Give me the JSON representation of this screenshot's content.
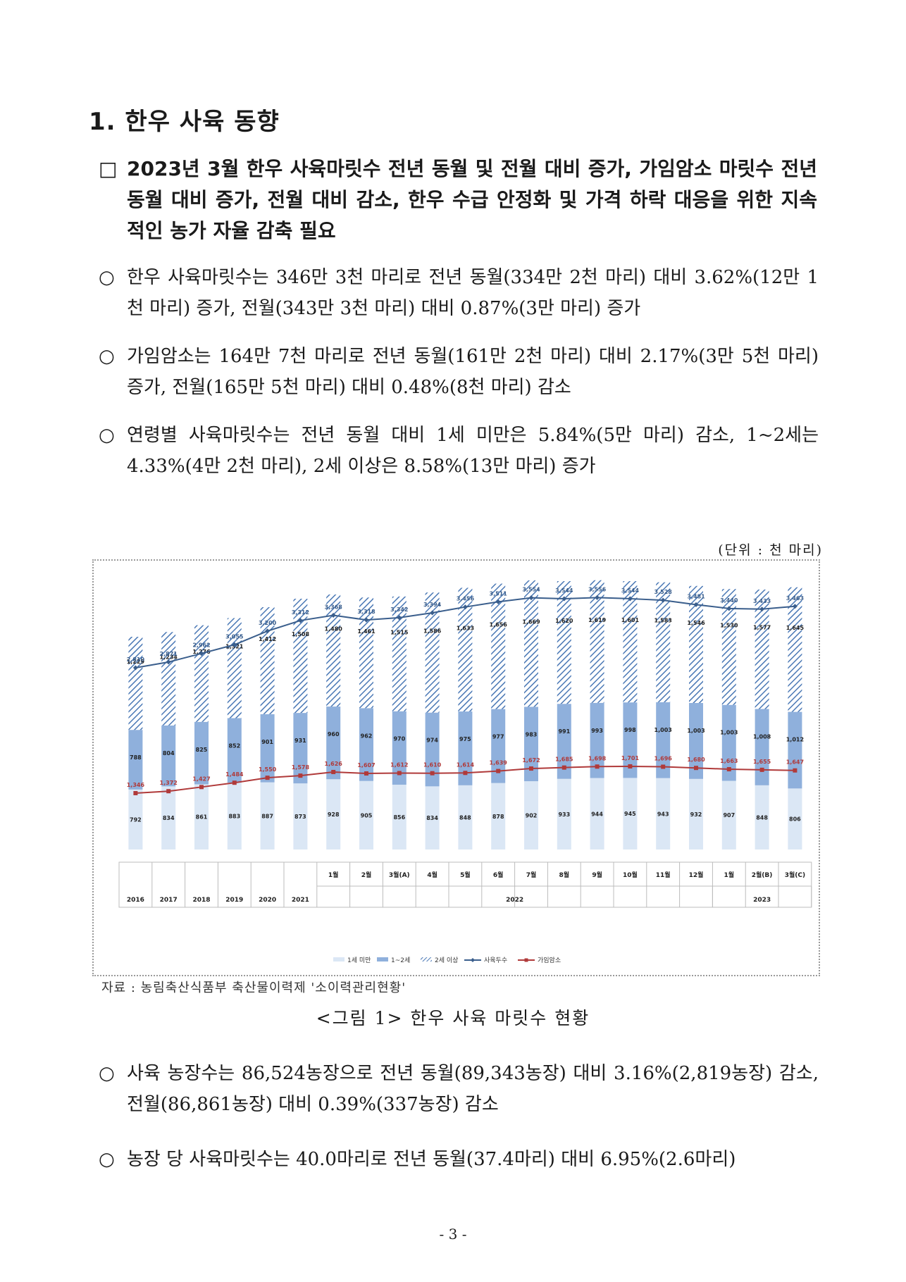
{
  "section_title": "1. 한우 사육 동향",
  "summary": {
    "mark": "□",
    "text": "2023년 3월 한우 사육마릿수 전년 동월 및 전월 대비 증가, 가임암소 마릿수 전년 동월 대비 증가, 전월 대비 감소, 한우 수급 안정화 및 가격 하락 대응을 위한 지속적인 농가 자율 감축 필요"
  },
  "bullets": [
    {
      "mark": "○",
      "text": "한우 사육마릿수는 346만 3천 마리로 전년 동월(334만 2천 마리) 대비 3.62%(12만 1천 마리) 증가, 전월(343만 3천 마리) 대비 0.87%(3만 마리) 증가"
    },
    {
      "mark": "○",
      "text": "가임암소는 164만 7천 마리로 전년 동월(161만 2천 마리) 대비 2.17%(3만 5천 마리) 증가, 전월(165만 5천 마리) 대비 0.48%(8천 마리) 감소"
    },
    {
      "mark": "○",
      "text": "연령별 사육마릿수는 전년 동월 대비 1세 미만은 5.84%(5만 마리) 감소, 1~2세는 4.33%(4만 2천 마리), 2세 이상은 8.58%(13만 마리) 증가"
    }
  ],
  "unit_label": "(단위 : 천 마리)",
  "source": "자료 : 농림축산식품부 축산물이력제 '소이력관리현황'",
  "caption": "<그림 1> 한우 사육 마릿수 현황",
  "bullets_after": [
    {
      "mark": "○",
      "text": "사육 농장수는 86,524농장으로 전년 동월(89,343농장) 대비 3.16%(2,819농장) 감소, 전월(86,861농장) 대비 0.39%(337농장) 감소"
    },
    {
      "mark": "○",
      "text": "농장 당 사육마릿수는 40.0마리로 전년 동월(37.4마리) 대비 6.95%(2.6마리)"
    }
  ],
  "page_number": "- 3 -",
  "chart_data": {
    "type": "bar",
    "stacked": true,
    "categories": [
      "2016",
      "2017",
      "2018",
      "2019",
      "2020",
      "2021",
      "1월",
      "2월",
      "3월(A)",
      "4월",
      "5월",
      "6월",
      "7월",
      "8월",
      "9월",
      "10월",
      "11월",
      "12월",
      "1월",
      "2월(B)",
      "3월(C)"
    ],
    "category_groups": [
      {
        "label": "2022",
        "start": 6,
        "end": 17
      },
      {
        "label": "2023",
        "start": 18,
        "end": 20
      }
    ],
    "series": [
      {
        "name": "1세 미만",
        "kind": "bar",
        "color": "#dbe7f5",
        "values": [
          792,
          834,
          861,
          883,
          887,
          873,
          928,
          905,
          856,
          834,
          848,
          878,
          902,
          933,
          944,
          945,
          943,
          932,
          907,
          848,
          806
        ]
      },
      {
        "name": "1~2세",
        "kind": "bar",
        "color": "#8fb0dc",
        "values": [
          788,
          804,
          825,
          852,
          901,
          931,
          960,
          962,
          970,
          974,
          975,
          977,
          983,
          991,
          993,
          998,
          1003,
          1003,
          1003,
          1008,
          1012
        ]
      },
      {
        "name": "2세 이상",
        "kind": "bar",
        "color": "#4a78b5",
        "values": [
          1229,
          1234,
          1276,
          1321,
          1412,
          1508,
          1480,
          1461,
          1515,
          1586,
          1633,
          1656,
          1669,
          1620,
          1619,
          1601,
          1583,
          1546,
          1530,
          1577,
          1645
        ]
      },
      {
        "name": "사육두수",
        "kind": "line",
        "color": "#3a5e8c",
        "values": [
          2810,
          2871,
          2962,
          3055,
          3200,
          3312,
          3368,
          3318,
          3342,
          3394,
          3456,
          3511,
          3554,
          3544,
          3556,
          3544,
          3528,
          3481,
          3440,
          3433,
          3463
        ]
      },
      {
        "name": "가임암소",
        "kind": "line",
        "color": "#b03a3a",
        "values": [
          1346,
          1372,
          1427,
          1484,
          1550,
          1578,
          1626,
          1607,
          1612,
          1610,
          1614,
          1639,
          1672,
          1685,
          1698,
          1701,
          1696,
          1680,
          1663,
          1655,
          1647
        ]
      }
    ],
    "legend_position": "bottom",
    "grid": false
  }
}
